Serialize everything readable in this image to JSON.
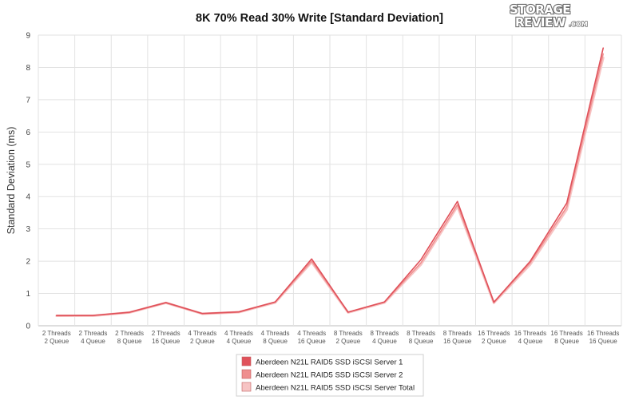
{
  "chart_data": {
    "type": "line",
    "title": "8K 70% Read 30% Write [Standard Deviation]",
    "xlabel": "",
    "ylabel": "Standard Deviation (ms)",
    "ylim": [
      0,
      9
    ],
    "yticks": [
      0,
      1,
      2,
      3,
      4,
      5,
      6,
      7,
      8,
      9
    ],
    "grid": true,
    "legend_position": "bottom",
    "categories": [
      [
        "2 Threads",
        "2 Queue"
      ],
      [
        "2 Threads",
        "4 Queue"
      ],
      [
        "2 Threads",
        "8 Queue"
      ],
      [
        "2 Threads",
        "16 Queue"
      ],
      [
        "4 Threads",
        "2 Queue"
      ],
      [
        "4 Threads",
        "4 Queue"
      ],
      [
        "4 Threads",
        "8 Queue"
      ],
      [
        "4 Threads",
        "16 Queue"
      ],
      [
        "8 Threads",
        "2 Queue"
      ],
      [
        "8 Threads",
        "4 Queue"
      ],
      [
        "8 Threads",
        "8 Queue"
      ],
      [
        "8 Threads",
        "16 Queue"
      ],
      [
        "16 Threads",
        "2 Queue"
      ],
      [
        "16 Threads",
        "4 Queue"
      ],
      [
        "16 Threads",
        "8 Queue"
      ],
      [
        "16 Threads",
        "16 Queue"
      ]
    ],
    "series": [
      {
        "name": "Aberdeen N21L RAID5 SSD iSCSI Server 1",
        "color": "#e0515a",
        "values": [
          0.32,
          0.32,
          0.42,
          0.72,
          0.38,
          0.43,
          0.74,
          2.07,
          0.42,
          0.74,
          2.05,
          3.85,
          0.73,
          2.0,
          3.8,
          8.6
        ]
      },
      {
        "name": "Aberdeen N21L RAID5 SSD iSCSI Server 2",
        "color": "#ef8f8f",
        "values": [
          0.31,
          0.32,
          0.41,
          0.71,
          0.37,
          0.42,
          0.73,
          2.0,
          0.42,
          0.73,
          1.95,
          3.75,
          0.72,
          1.95,
          3.68,
          8.42
        ]
      },
      {
        "name": "Aberdeen N21L RAID5 SSD iSCSI Server Total",
        "color": "#f7c4c4",
        "values": [
          0.31,
          0.31,
          0.41,
          0.71,
          0.37,
          0.42,
          0.72,
          1.97,
          0.41,
          0.72,
          1.9,
          3.7,
          0.71,
          1.9,
          3.6,
          8.3
        ]
      }
    ]
  },
  "logo": {
    "top": "STORAGE",
    "bottom": "REVIEW",
    "suffix": ".COM"
  }
}
